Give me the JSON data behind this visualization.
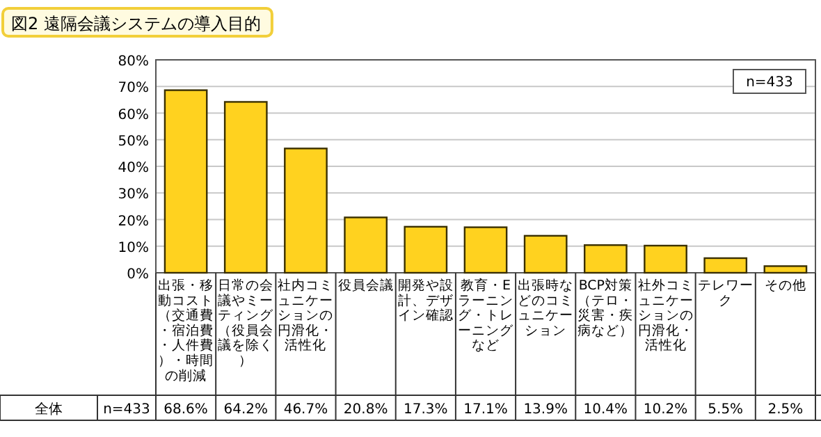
{
  "chart_data": {
    "type": "bar",
    "title": "図2 遠隔会議システムの導入目的",
    "categories": [
      "出張・移動コスト（交通費・宿泊費・人件費）・時間の削減",
      "日常の会議やミーティング（役員会議を除く）",
      "社内コミュニケーションの円滑化・活性化",
      "役員会議",
      "開発や設計、デザイン確認",
      "教育・Eラーニング・トレーニングなど",
      "出張時などのコミュニケーション",
      "BCP対策（テロ・災害・疾病など）",
      "社外コミュニケーションの円滑化・活性化",
      "テレワーク",
      "その他"
    ],
    "values": [
      68.6,
      64.2,
      46.7,
      20.8,
      17.3,
      17.1,
      13.9,
      10.4,
      10.2,
      5.5,
      2.5
    ],
    "value_labels": [
      "68.6%",
      "64.2%",
      "46.7%",
      "20.8%",
      "17.3%",
      "17.1%",
      "13.9%",
      "10.4%",
      "10.2%",
      "5.5%",
      "2.5%"
    ],
    "color": "#ffd21f",
    "ylim": [
      0,
      80
    ],
    "yticks": [
      {
        "value": 0,
        "label": "0%"
      },
      {
        "value": 10,
        "label": "10%"
      },
      {
        "value": 20,
        "label": "20%"
      },
      {
        "value": 30,
        "label": "30%"
      },
      {
        "value": 40,
        "label": "40%"
      },
      {
        "value": 50,
        "label": "50%"
      },
      {
        "value": 60,
        "label": "60%"
      },
      {
        "value": 70,
        "label": "70%"
      },
      {
        "value": 80,
        "label": "80%"
      }
    ],
    "grid": "y",
    "annotations": [
      "n=433",
      "全体",
      "n=433"
    ]
  }
}
